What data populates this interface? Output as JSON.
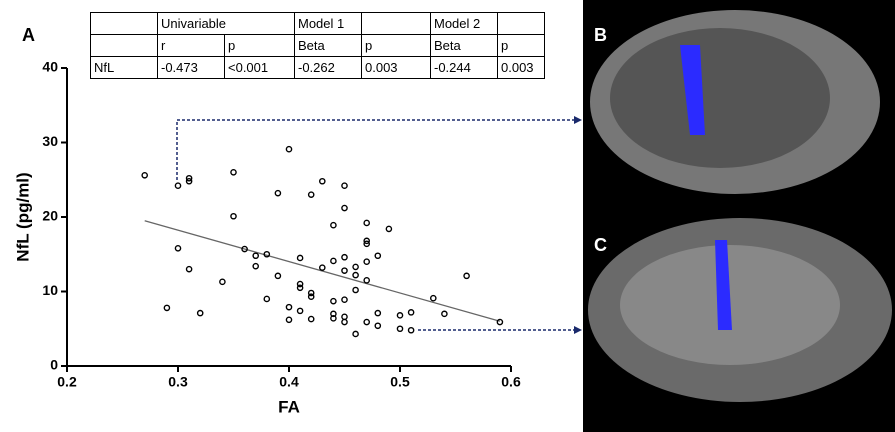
{
  "chart_data": {
    "type": "scatter",
    "panel_label": "A",
    "x_label": "FA",
    "y_label": "NfL (pg/ml)",
    "x": [
      0.27,
      0.3,
      0.31,
      0.31,
      0.3,
      0.31,
      0.29,
      0.32,
      0.35,
      0.35,
      0.34,
      0.36,
      0.37,
      0.37,
      0.38,
      0.38,
      0.39,
      0.39,
      0.4,
      0.4,
      0.4,
      0.41,
      0.41,
      0.41,
      0.41,
      0.42,
      0.42,
      0.42,
      0.42,
      0.43,
      0.43,
      0.44,
      0.44,
      0.44,
      0.44,
      0.44,
      0.45,
      0.45,
      0.45,
      0.45,
      0.45,
      0.45,
      0.45,
      0.46,
      0.46,
      0.46,
      0.46,
      0.47,
      0.47,
      0.47,
      0.47,
      0.47,
      0.47,
      0.48,
      0.48,
      0.48,
      0.49,
      0.5,
      0.5,
      0.51,
      0.51,
      0.53,
      0.54,
      0.56,
      0.59
    ],
    "values": [
      25.6,
      24.2,
      25.2,
      24.8,
      15.8,
      13.0,
      7.8,
      7.1,
      26.0,
      20.1,
      11.3,
      15.7,
      14.8,
      13.4,
      15.0,
      9.0,
      12.1,
      23.2,
      29.1,
      7.9,
      6.2,
      14.5,
      11.0,
      10.5,
      7.4,
      23.0,
      9.8,
      9.3,
      6.3,
      24.8,
      13.2,
      18.9,
      14.1,
      8.7,
      7.0,
      6.4,
      24.2,
      21.2,
      14.6,
      12.8,
      8.9,
      6.6,
      5.9,
      13.3,
      12.2,
      10.2,
      4.3,
      19.2,
      16.8,
      16.4,
      14.0,
      11.5,
      5.9,
      14.8,
      7.1,
      5.4,
      18.4,
      6.8,
      5.0,
      7.2,
      4.8,
      9.1,
      7.0,
      12.1,
      5.9
    ],
    "trendline": {
      "x": [
        0.27,
        0.59
      ],
      "values": [
        19.5,
        6.0
      ],
      "color": "#666666"
    },
    "marker_color": "#000000",
    "xlim": [
      0.2,
      0.6
    ],
    "xticks": [
      0.2,
      0.3,
      0.4,
      0.5,
      0.6
    ],
    "ylim": [
      0,
      40
    ],
    "yticks": [
      0,
      10,
      20,
      30,
      40
    ]
  },
  "table": {
    "groups": [
      "Univariable",
      "Model 1",
      "Model 2"
    ],
    "columns": [
      "r",
      "p",
      "Beta",
      "p",
      "Beta",
      "p"
    ],
    "rows": [
      [
        "NfL",
        "-0.473",
        "<0.001",
        "-0.262",
        "0.003",
        "-0.244",
        "0.003"
      ]
    ]
  },
  "panels": [
    "B",
    "C"
  ]
}
